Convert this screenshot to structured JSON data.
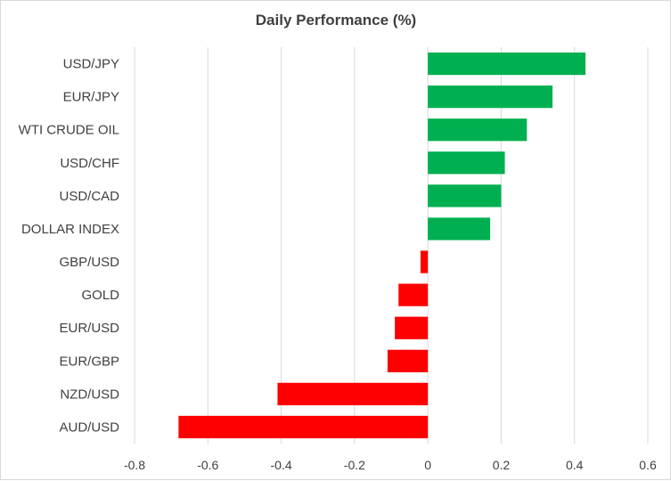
{
  "chart_data": {
    "type": "bar",
    "orientation": "horizontal",
    "title": "Daily Performance (%)",
    "xlabel": "",
    "ylabel": "",
    "categories": [
      "USD/JPY",
      "EUR/JPY",
      "WTI CRUDE OIL",
      "USD/CHF",
      "USD/CAD",
      "DOLLAR INDEX",
      "GBP/USD",
      "GOLD",
      "EUR/USD",
      "EUR/GBP",
      "NZD/USD",
      "AUD/USD"
    ],
    "values": [
      0.43,
      0.34,
      0.27,
      0.21,
      0.2,
      0.17,
      -0.02,
      -0.08,
      -0.09,
      -0.11,
      -0.41,
      -0.68
    ],
    "xlim": [
      -0.8,
      0.6
    ],
    "xticks": [
      -0.8,
      -0.6,
      -0.4,
      -0.2,
      0,
      0.2,
      0.4,
      0.6
    ],
    "xtick_labels": [
      "-0.8",
      "-0.6",
      "-0.4",
      "-0.2",
      "0",
      "0.2",
      "0.4",
      "0.6"
    ],
    "grid": "vertical",
    "legend": "none",
    "colors": {
      "positive": "#00b050",
      "negative": "#ff0000",
      "gridline": "#d9d9d9",
      "text": "#404040"
    }
  }
}
